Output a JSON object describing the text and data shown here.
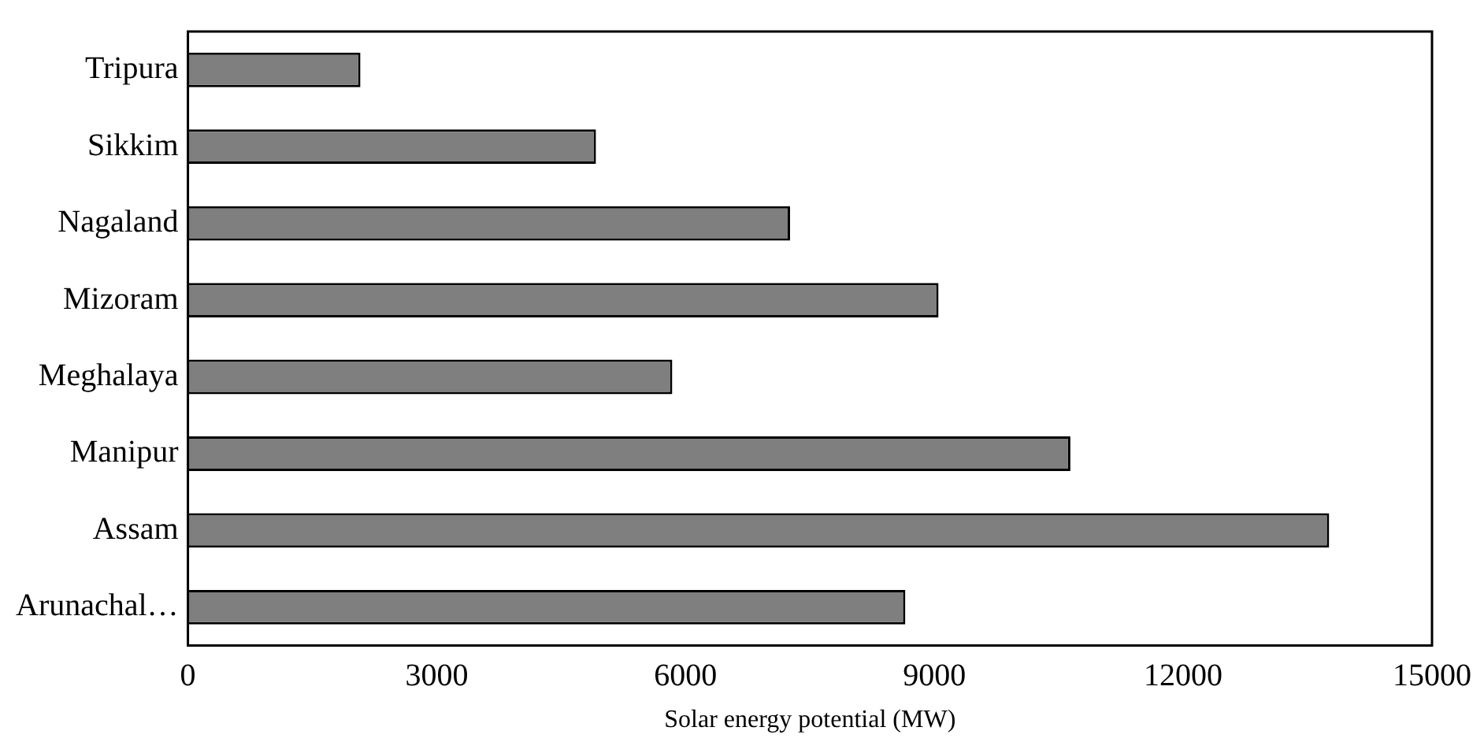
{
  "chart_data": {
    "type": "bar",
    "orientation": "horizontal",
    "xlabel": "Solar energy potential (MW)",
    "categories": [
      "Tripura",
      "Sikkim",
      "Nagaland",
      "Mizoram",
      "Meghalaya",
      "Manipur",
      "Assam",
      "Arunachal…"
    ],
    "values": [
      2080,
      4920,
      7260,
      9050,
      5840,
      10640,
      13760,
      8650
    ],
    "color": "#7f7f7f",
    "xlim": [
      0,
      15000
    ],
    "xticks": [
      0,
      3000,
      6000,
      9000,
      12000,
      15000
    ],
    "grid": false,
    "legend": false
  }
}
